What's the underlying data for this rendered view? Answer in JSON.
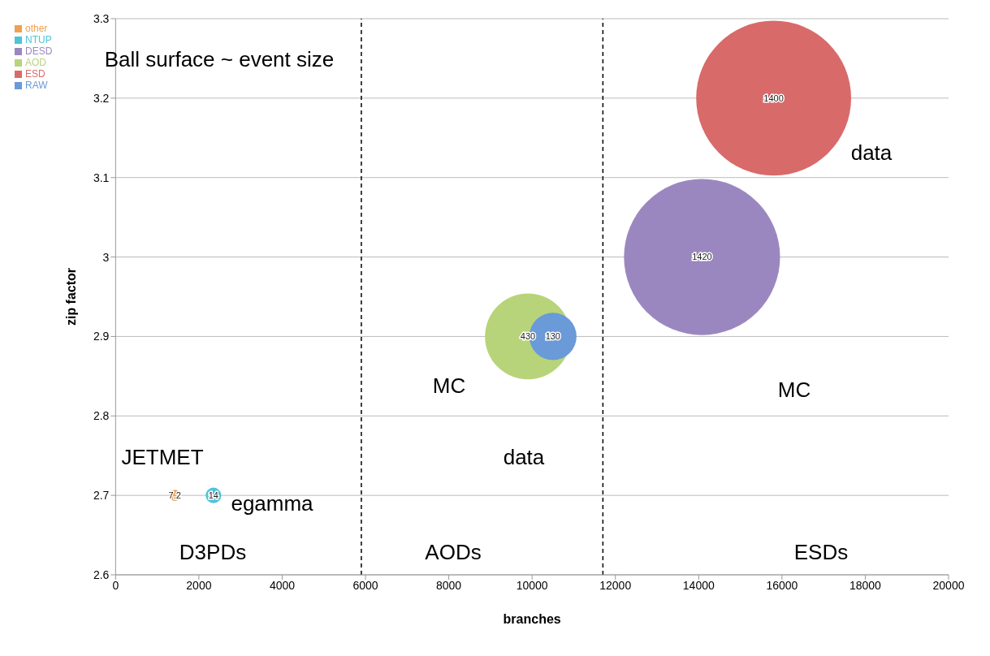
{
  "chart_data": {
    "type": "bubble",
    "xlabel": "branches",
    "ylabel": "zip factor",
    "xlim": [
      0,
      20000
    ],
    "xticks": [
      0,
      2000,
      4000,
      6000,
      8000,
      10000,
      12000,
      14000,
      16000,
      18000,
      20000
    ],
    "ylim": [
      2.6,
      3.3
    ],
    "yticks": [
      2.6,
      2.7,
      2.8,
      2.9,
      3,
      3.1,
      3.2,
      3.3
    ],
    "grid": "y",
    "legend": "top left",
    "series": [
      {
        "name": "other",
        "color": "#f0a050",
        "x": [
          1420
        ],
        "values": [
          2.7
        ],
        "sizes": [
          7.2
        ],
        "value_labels": [
          "7.2"
        ]
      },
      {
        "name": "NTUP",
        "color": "#4fc3d8",
        "x": [
          2350
        ],
        "values": [
          2.7
        ],
        "sizes": [
          14
        ],
        "value_labels": [
          "14"
        ]
      },
      {
        "name": "DESD",
        "color": "#9b87c0",
        "x": [
          14080
        ],
        "values": [
          3
        ],
        "sizes": [
          1420
        ],
        "value_labels": [
          "1420"
        ]
      },
      {
        "name": "AOD",
        "color": "#b8d47a",
        "x": [
          9900
        ],
        "values": [
          2.9
        ],
        "sizes": [
          430
        ],
        "value_labels": [
          "430"
        ]
      },
      {
        "name": "ESD",
        "color": "#d96a6a",
        "x": [
          15800
        ],
        "values": [
          3.2
        ],
        "sizes": [
          1400
        ],
        "value_labels": [
          "1400"
        ]
      },
      {
        "name": "RAW",
        "color": "#6a9ad8",
        "x": [
          10500
        ],
        "values": [
          2.9
        ],
        "sizes": [
          130
        ],
        "value_labels": [
          "130"
        ]
      }
    ],
    "ref_lines": [
      {
        "axis": "x",
        "value": 5900,
        "line_style": "dashed",
        "color": "#000000"
      },
      {
        "axis": "x",
        "value": 11700,
        "line_style": "dashed",
        "color": "#000000"
      }
    ],
    "annotations": [
      "Ball surface ~ event size",
      "JETMET",
      "egamma",
      "D3PDs",
      "AODs",
      "ESDs",
      "MC",
      "data",
      "data",
      "MC"
    ]
  }
}
